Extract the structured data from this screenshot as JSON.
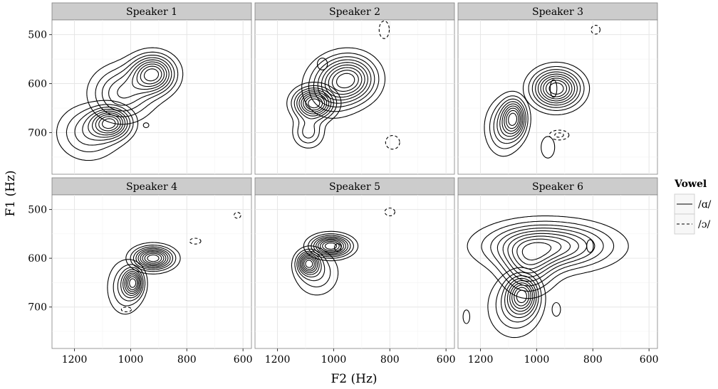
{
  "chart_data": {
    "type": "contour",
    "x_label": "F2 (Hz)",
    "y_label": "F1 (Hz)",
    "x_axis": {
      "reversed": true,
      "range": [
        1280,
        570
      ],
      "ticks": [
        1200,
        1000,
        800,
        600
      ]
    },
    "y_axis": {
      "reversed": true,
      "range": [
        470,
        785
      ],
      "ticks": [
        500,
        600,
        700
      ]
    },
    "legend": {
      "title": "Vowel",
      "position": "right",
      "entries": [
        {
          "label": "/ɑ/",
          "linestyle": "solid"
        },
        {
          "label": "/ɔ/",
          "linestyle": "dashed"
        }
      ]
    },
    "panels": [
      {
        "title": "Speaker 1",
        "series": [
          {
            "vowel": "/ɑ/",
            "linestyle": "solid",
            "peaks": [
              {
                "f2": 1070,
                "f1": 680,
                "sf2": 45,
                "sf1": 20,
                "weight": 1.0
              },
              {
                "f2": 1150,
                "f1": 700,
                "sf2": 70,
                "sf1": 35,
                "weight": 0.45
              }
            ],
            "satellites": [
              {
                "f2": 945,
                "f1": 685,
                "r_f2": 10,
                "r_f1": 5
              }
            ]
          },
          {
            "vowel": "/ɔ/",
            "linestyle": "dashed",
            "peaks": [
              {
                "f2": 920,
                "f1": 580,
                "sf2": 50,
                "sf1": 25,
                "weight": 1.0
              },
              {
                "f2": 1030,
                "f1": 620,
                "sf2": 70,
                "sf1": 35,
                "weight": 0.55
              }
            ],
            "satellites": []
          }
        ]
      },
      {
        "title": "Speaker 2",
        "series": [
          {
            "vowel": "/ɑ/",
            "linestyle": "solid",
            "peaks": [
              {
                "f2": 1070,
                "f1": 640,
                "sf2": 45,
                "sf1": 20,
                "weight": 1.0
              },
              {
                "f2": 1090,
                "f1": 700,
                "sf2": 35,
                "sf1": 20,
                "weight": 0.35
              }
            ],
            "satellites": [
              {
                "f2": 1040,
                "f1": 560,
                "r_f2": 18,
                "r_f1": 12
              }
            ]
          },
          {
            "vowel": "/ɔ/",
            "linestyle": "dashed",
            "peaks": [
              {
                "f2": 940,
                "f1": 590,
                "sf2": 60,
                "sf1": 30,
                "weight": 1.0
              },
              {
                "f2": 1010,
                "f1": 610,
                "sf2": 60,
                "sf1": 35,
                "weight": 0.5
              }
            ],
            "satellites": [
              {
                "f2": 820,
                "f1": 490,
                "r_f2": 18,
                "r_f1": 18
              },
              {
                "f2": 790,
                "f1": 720,
                "r_f2": 25,
                "r_f1": 14
              }
            ]
          }
        ]
      },
      {
        "title": "Speaker 3",
        "series": [
          {
            "vowel": "/ɑ/",
            "linestyle": "solid",
            "peaks": [
              {
                "f2": 1080,
                "f1": 670,
                "sf2": 28,
                "sf1": 25,
                "weight": 1.0
              },
              {
                "f2": 1120,
                "f1": 690,
                "sf2": 40,
                "sf1": 35,
                "weight": 0.5
              }
            ],
            "satellites": [
              {
                "f2": 940,
                "f1": 610,
                "r_f2": 12,
                "r_f1": 18
              },
              {
                "f2": 960,
                "f1": 730,
                "r_f2": 24,
                "r_f1": 22
              }
            ]
          },
          {
            "vowel": "/ɔ/",
            "linestyle": "dashed",
            "peaks": [
              {
                "f2": 930,
                "f1": 610,
                "sf2": 55,
                "sf1": 25,
                "weight": 1.0
              }
            ],
            "satellites": [
              {
                "f2": 790,
                "f1": 490,
                "r_f2": 16,
                "r_f1": 9
              },
              {
                "f2": 920,
                "f1": 705,
                "r_f2": 35,
                "r_f1": 10
              }
            ]
          }
        ]
      },
      {
        "title": "Speaker 4",
        "series": [
          {
            "vowel": "/ɑ/",
            "linestyle": "solid",
            "peaks": [
              {
                "f2": 990,
                "f1": 650,
                "sf2": 22,
                "sf1": 18,
                "weight": 1.0
              },
              {
                "f2": 1020,
                "f1": 660,
                "sf2": 40,
                "sf1": 35,
                "weight": 0.45
              }
            ],
            "satellites": []
          },
          {
            "vowel": "/ɔ/",
            "linestyle": "dashed",
            "peaks": [
              {
                "f2": 920,
                "f1": 600,
                "sf2": 45,
                "sf1": 15,
                "weight": 1.0
              }
            ],
            "satellites": [
              {
                "f2": 770,
                "f1": 565,
                "r_f2": 20,
                "r_f1": 6
              },
              {
                "f2": 620,
                "f1": 512,
                "r_f2": 12,
                "r_f1": 6
              },
              {
                "f2": 1015,
                "f1": 705,
                "r_f2": 18,
                "r_f1": 5
              }
            ]
          }
        ]
      },
      {
        "title": "Speaker 5",
        "series": [
          {
            "vowel": "/ɑ/",
            "linestyle": "solid",
            "peaks": [
              {
                "f2": 1090,
                "f1": 610,
                "sf2": 25,
                "sf1": 15,
                "weight": 1.0
              },
              {
                "f2": 1060,
                "f1": 630,
                "sf2": 50,
                "sf1": 30,
                "weight": 0.4
              }
            ],
            "satellites": [
              {
                "f2": 985,
                "f1": 578,
                "r_f2": 12,
                "r_f1": 8
              }
            ]
          },
          {
            "vowel": "/ɔ/",
            "linestyle": "dashed",
            "peaks": [
              {
                "f2": 1010,
                "f1": 575,
                "sf2": 45,
                "sf1": 14,
                "weight": 1.0
              }
            ],
            "satellites": [
              {
                "f2": 800,
                "f1": 505,
                "r_f2": 18,
                "r_f1": 8
              }
            ]
          }
        ]
      },
      {
        "title": "Speaker 6",
        "series": [
          {
            "vowel": "/ɑ/",
            "linestyle": "solid",
            "peaks": [
              {
                "f2": 1050,
                "f1": 675,
                "sf2": 35,
                "sf1": 25,
                "weight": 1.0
              },
              {
                "f2": 1080,
                "f1": 700,
                "sf2": 60,
                "sf1": 40,
                "weight": 0.45
              }
            ],
            "satellites": [
              {
                "f2": 810,
                "f1": 575,
                "r_f2": 12,
                "r_f1": 13
              },
              {
                "f2": 930,
                "f1": 705,
                "r_f2": 15,
                "r_f1": 14
              },
              {
                "f2": 1250,
                "f1": 720,
                "r_f2": 12,
                "r_f1": 14
              }
            ]
          },
          {
            "vowel": "/ɔ/",
            "linestyle": "dashed",
            "peaks": [
              {
                "f2": 960,
                "f1": 575,
                "sf2": 140,
                "sf1": 30,
                "weight": 1.0
              },
              {
                "f2": 1030,
                "f1": 620,
                "sf2": 60,
                "sf1": 35,
                "weight": 0.6
              }
            ],
            "satellites": []
          }
        ]
      }
    ]
  }
}
